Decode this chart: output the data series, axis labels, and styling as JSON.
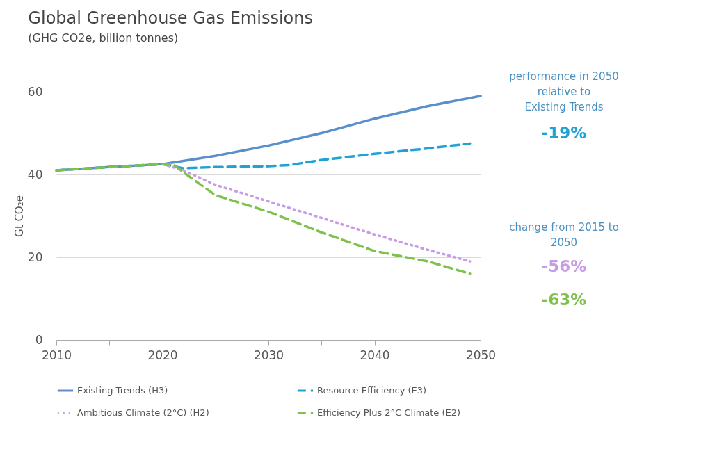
{
  "chart_data": {
    "type": "line",
    "title": "Global Greenhouse Gas Emissions",
    "subtitle": "(GHG CO2e, billion tonnes)",
    "ylabel": "Gt CO₂e",
    "xlim": [
      2010,
      2050
    ],
    "ylim": [
      0,
      60
    ],
    "yticks": [
      0,
      20,
      40,
      60
    ],
    "xticks": [
      2010,
      {
        "value": 2015,
        "label": null
      },
      2020,
      {
        "value": 2025,
        "label": null
      },
      2030,
      {
        "value": 2035,
        "label": null
      },
      2040,
      {
        "value": 2045,
        "label": null
      },
      2050
    ],
    "grid": "y",
    "legend": "bottom",
    "marker": "none",
    "series": [
      {
        "name": "Existing Trends (H3)",
        "color": "#5b8fc9",
        "line_style": "solid",
        "x": [
          2010,
          2015,
          2020,
          2025,
          2030,
          2035,
          2040,
          2045,
          2050
        ],
        "values": [
          41,
          41.8,
          42.5,
          44.5,
          47,
          50,
          53.5,
          56.5,
          59
        ]
      },
      {
        "name": "Resource Efficiency (E3)",
        "color": "#1fa3d6",
        "line_style": "dashed",
        "x": [
          2010,
          2015,
          2020,
          2022,
          2025,
          2030,
          2032,
          2035,
          2040,
          2045,
          2049
        ],
        "values": [
          41,
          41.8,
          42.5,
          41.5,
          41.8,
          42,
          42.3,
          43.5,
          45,
          46.3,
          47.5
        ]
      },
      {
        "name": "Ambitious Climate (2°C) (H2)",
        "color": "#c79be6",
        "line_style": "dotted",
        "x": [
          2020,
          2022,
          2025,
          2030,
          2035,
          2040,
          2045,
          2049
        ],
        "values": [
          42.5,
          41,
          37.5,
          33.5,
          29.5,
          25.5,
          21.8,
          19
        ]
      },
      {
        "name": "Efficiency Plus 2°C Climate (E2)",
        "color": "#7fc14d",
        "line_style": "dashed",
        "x": [
          2010,
          2015,
          2020,
          2021,
          2022,
          2025,
          2030,
          2035,
          2040,
          2045,
          2049
        ],
        "values": [
          41,
          41.8,
          42.5,
          42.5,
          40.5,
          35,
          31,
          26,
          21.5,
          19,
          16
        ]
      }
    ],
    "annotations": [
      "performance in 2050 relative to Existing Trends",
      "-19%",
      "change from 2015 to 2050",
      "-56%",
      "-63%"
    ]
  }
}
